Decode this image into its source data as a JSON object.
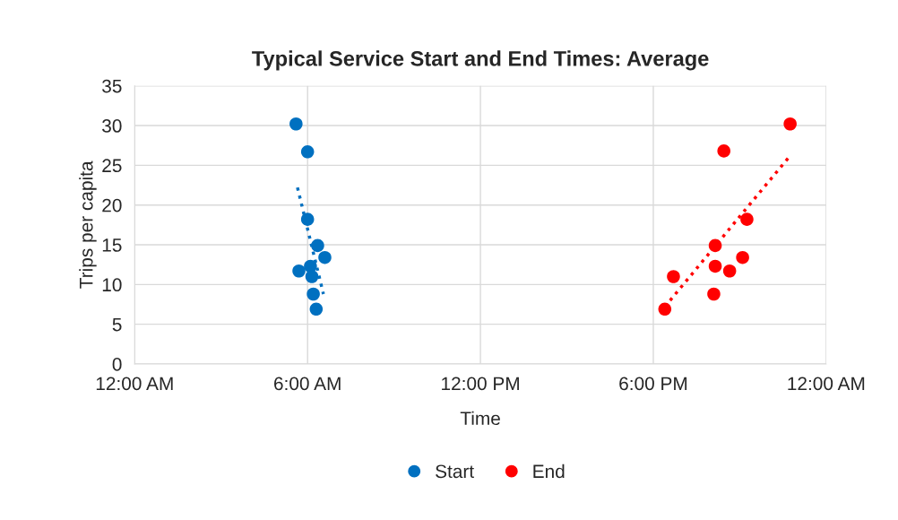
{
  "chart_data": {
    "type": "scatter",
    "title": "Typical Service Start and End Times: Average",
    "xlabel": "Time",
    "ylabel": "Trips per capita",
    "xlim": [
      0,
      24
    ],
    "xticks": [
      {
        "value": 0,
        "label": "12:00 AM"
      },
      {
        "value": 6,
        "label": "6:00 AM"
      },
      {
        "value": 12,
        "label": "12:00 PM"
      },
      {
        "value": 18,
        "label": "6:00 PM"
      },
      {
        "value": 24,
        "label": "12:00 AM"
      }
    ],
    "ylim": [
      0,
      35
    ],
    "yticks": [
      0,
      5,
      10,
      15,
      20,
      25,
      30,
      35
    ],
    "grid": true,
    "legend": "bottom",
    "marker": "circle",
    "series": [
      {
        "name": "Start",
        "color": "#0070c0",
        "x": [
          5.6,
          6.0,
          6.0,
          6.35,
          6.6,
          6.1,
          5.7,
          6.15,
          6.2,
          6.3
        ],
        "values": [
          30.2,
          26.7,
          18.2,
          14.9,
          13.4,
          12.3,
          11.7,
          11.0,
          8.8,
          6.9
        ]
      },
      {
        "name": "End",
        "color": "#ff0000",
        "x": [
          22.75,
          20.45,
          21.25,
          20.15,
          21.1,
          20.15,
          20.65,
          18.7,
          20.1,
          18.4
        ],
        "values": [
          30.2,
          26.8,
          18.2,
          14.9,
          13.4,
          12.3,
          11.7,
          11.0,
          8.8,
          6.9
        ]
      },
      {
        "type": "line",
        "color": "#0070c0",
        "line_style": "dotted",
        "marker": "none",
        "x": [
          5.65,
          6.55
        ],
        "values": [
          22.2,
          8.8
        ]
      },
      {
        "type": "line",
        "color": "#ff0000",
        "line_style": "dotted",
        "marker": "none",
        "x": [
          18.4,
          22.75
        ],
        "values": [
          7.2,
          26.2
        ]
      }
    ]
  }
}
